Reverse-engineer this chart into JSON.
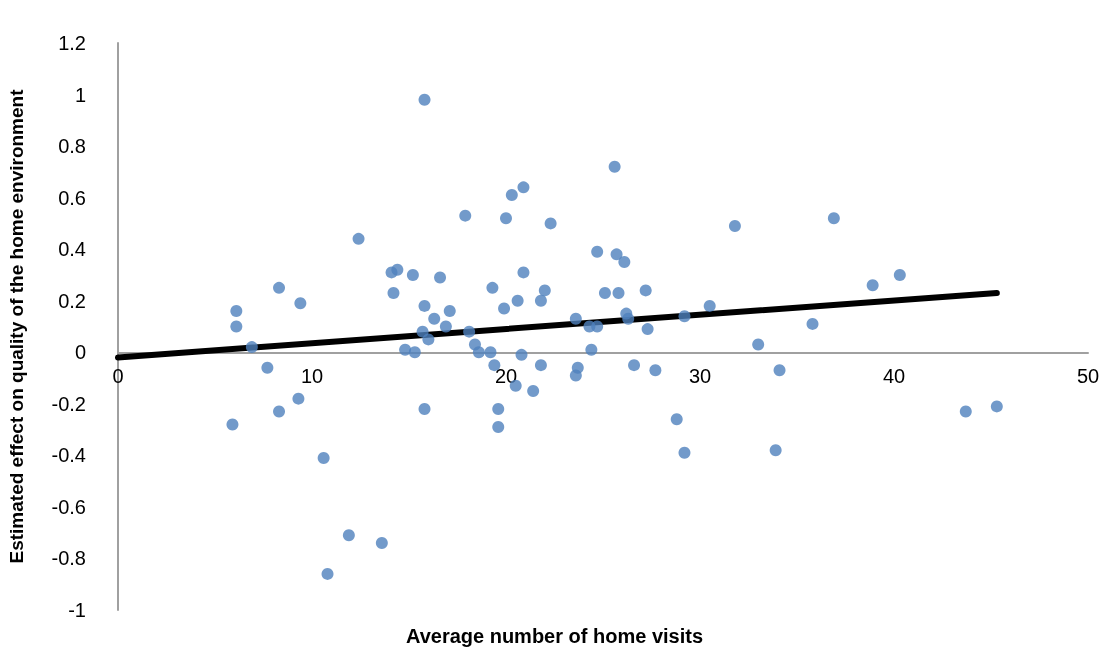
{
  "chart_data": {
    "type": "scatter",
    "xlabel": "Average number of home visits",
    "ylabel": "Estimated effect on quality of the home environment",
    "xlim": [
      0,
      50
    ],
    "xticks": [
      0,
      10,
      20,
      30,
      40,
      50
    ],
    "ylim": [
      -1,
      1.2
    ],
    "yticks": [
      -1,
      -0.8,
      -0.6,
      -0.4,
      -0.2,
      0,
      0.2,
      0.4,
      0.6,
      0.8,
      1,
      1.2
    ],
    "grid": false,
    "marker": "circle",
    "series": [
      {
        "type": "scatter",
        "color": "#4f81bd",
        "x": [
          5.9,
          6.1,
          6.1,
          6.9,
          7.7,
          8.3,
          8.3,
          9.4,
          9.3,
          10.6,
          10.8,
          11.9,
          12.4,
          13.6,
          14.1,
          14.2,
          14.4,
          14.8,
          15.2,
          15.3,
          15.8,
          15.7,
          15.8,
          15.8,
          16.0,
          16.3,
          16.6,
          16.9,
          17.1,
          17.9,
          18.1,
          18.4,
          18.6,
          19.2,
          19.3,
          19.4,
          19.6,
          19.6,
          19.9,
          20.0,
          20.3,
          20.5,
          20.6,
          20.8,
          20.9,
          20.9,
          21.4,
          21.8,
          21.8,
          22.0,
          22.3,
          23.6,
          23.6,
          23.7,
          24.3,
          24.4,
          24.7,
          24.7,
          25.1,
          25.6,
          25.7,
          25.8,
          26.1,
          26.2,
          26.3,
          26.6,
          27.2,
          27.3,
          27.7,
          28.8,
          29.2,
          29.2,
          30.5,
          31.8,
          33.0,
          33.9,
          34.1,
          35.8,
          36.9,
          38.9,
          40.3,
          43.7,
          45.3
        ],
        "values": [
          -0.28,
          0.1,
          0.16,
          0.02,
          -0.06,
          0.25,
          -0.23,
          0.19,
          -0.18,
          -0.41,
          -0.86,
          -0.71,
          0.44,
          -0.74,
          0.31,
          0.23,
          0.32,
          0.01,
          0.3,
          0.0,
          0.18,
          0.08,
          -0.22,
          0.98,
          0.05,
          0.13,
          0.29,
          0.1,
          0.16,
          0.53,
          0.08,
          0.03,
          0.0,
          0.0,
          0.25,
          -0.05,
          -0.22,
          -0.29,
          0.17,
          0.52,
          0.61,
          -0.13,
          0.2,
          -0.01,
          0.31,
          0.64,
          -0.15,
          -0.05,
          0.2,
          0.24,
          0.5,
          0.13,
          -0.09,
          -0.06,
          0.1,
          0.01,
          0.1,
          0.39,
          0.23,
          0.72,
          0.38,
          0.23,
          0.35,
          0.15,
          0.13,
          -0.05,
          0.24,
          0.09,
          -0.07,
          -0.26,
          0.14,
          -0.39,
          0.18,
          0.49,
          0.03,
          -0.38,
          -0.07,
          0.11,
          0.52,
          0.26,
          0.3,
          -0.23,
          -0.21
        ]
      },
      {
        "type": "line",
        "color": "#000000",
        "line_style": "solid",
        "marker": "none",
        "x": [
          0,
          45.3
        ],
        "values": [
          -0.02,
          0.23
        ]
      }
    ]
  }
}
